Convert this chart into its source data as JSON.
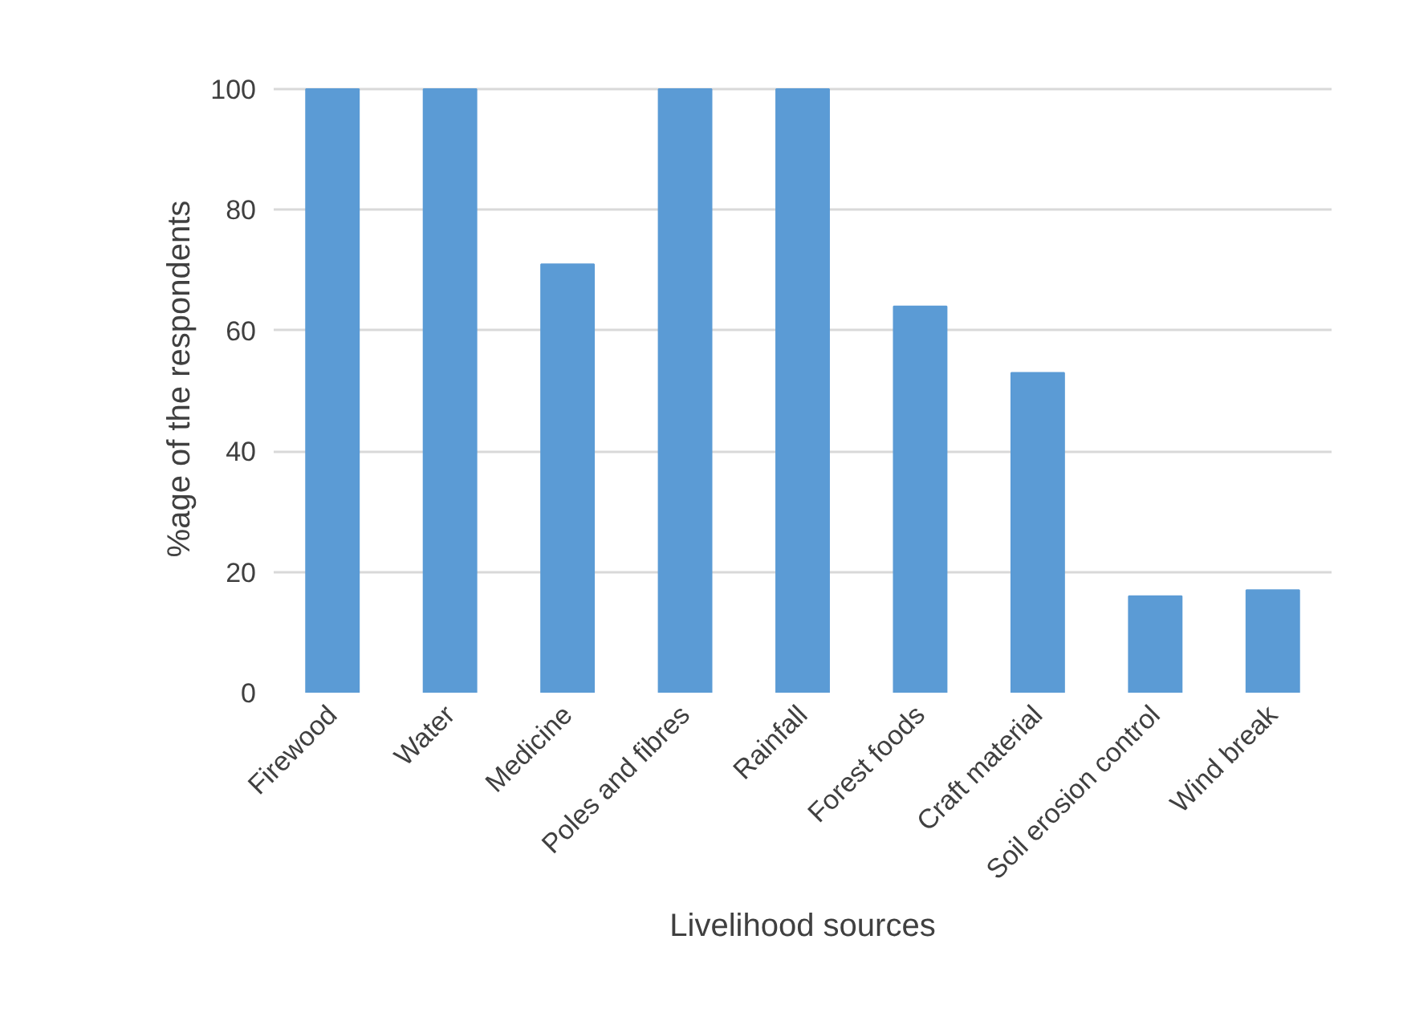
{
  "chart_data": {
    "type": "bar",
    "xlabel": "Livelihood sources",
    "ylabel": "%age of the respondents",
    "categories": [
      "Firewood",
      "Water",
      "Medicine",
      "Poles and fibres",
      "Rainfall",
      "Forest foods",
      "Craft material",
      "Soil erosion control",
      "Wind break"
    ],
    "values": [
      100,
      100,
      71,
      100,
      100,
      64,
      53,
      16,
      17
    ],
    "color": "#5b9bd5",
    "ylim": [
      0,
      100
    ],
    "yticks": [
      0,
      20,
      40,
      60,
      80,
      100
    ],
    "grid": "y"
  }
}
